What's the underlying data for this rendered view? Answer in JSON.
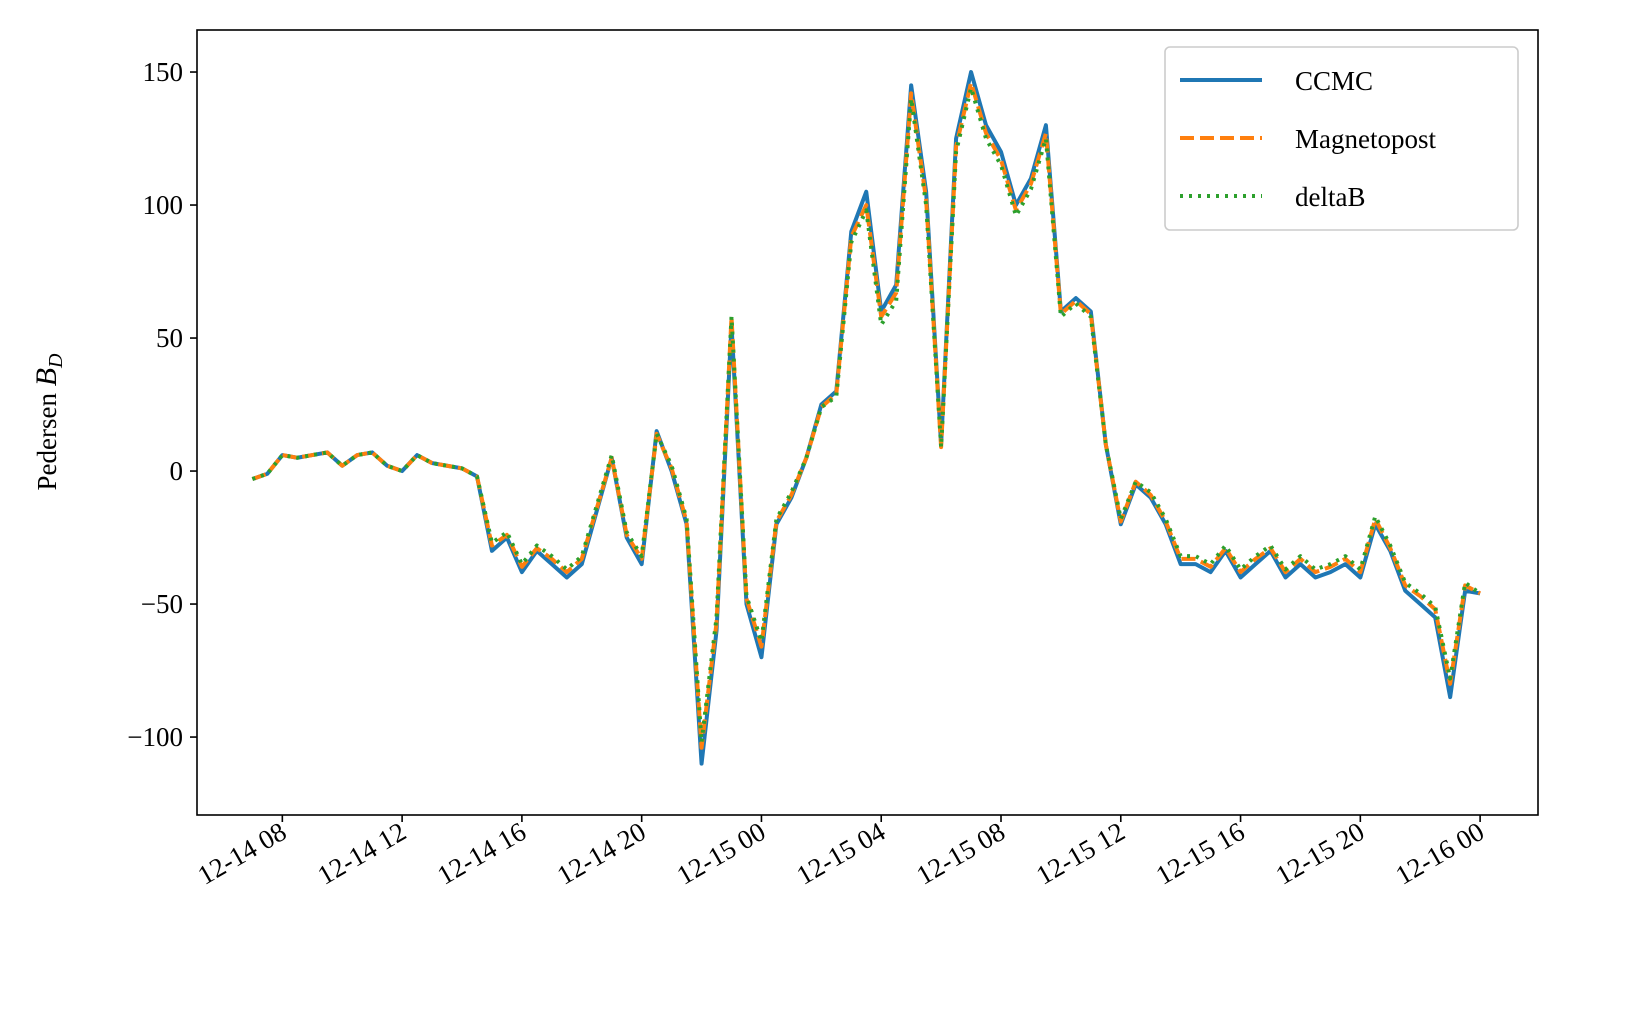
{
  "chart_data": {
    "type": "line",
    "ylabel": {
      "text": "Pedersen",
      "symbol": "B",
      "subscript": "D"
    },
    "x": [
      "12-14 07:00",
      "12-14 07:30",
      "12-14 08:00",
      "12-14 08:30",
      "12-14 09:00",
      "12-14 09:30",
      "12-14 10:00",
      "12-14 10:30",
      "12-14 11:00",
      "12-14 11:30",
      "12-14 12:00",
      "12-14 12:30",
      "12-14 13:00",
      "12-14 13:30",
      "12-14 14:00",
      "12-14 14:30",
      "12-14 15:00",
      "12-14 15:30",
      "12-14 16:00",
      "12-14 16:30",
      "12-14 17:00",
      "12-14 17:30",
      "12-14 18:00",
      "12-14 18:30",
      "12-14 19:00",
      "12-14 19:30",
      "12-14 20:00",
      "12-14 20:30",
      "12-14 21:00",
      "12-14 21:30",
      "12-14 22:00",
      "12-14 22:30",
      "12-14 23:00",
      "12-14 23:30",
      "12-15 00:00",
      "12-15 00:30",
      "12-15 01:00",
      "12-15 01:30",
      "12-15 02:00",
      "12-15 02:30",
      "12-15 03:00",
      "12-15 03:30",
      "12-15 04:00",
      "12-15 04:30",
      "12-15 05:00",
      "12-15 05:30",
      "12-15 06:00",
      "12-15 06:30",
      "12-15 07:00",
      "12-15 07:30",
      "12-15 08:00",
      "12-15 08:30",
      "12-15 09:00",
      "12-15 09:30",
      "12-15 10:00",
      "12-15 10:30",
      "12-15 11:00",
      "12-15 11:30",
      "12-15 12:00",
      "12-15 12:30",
      "12-15 13:00",
      "12-15 13:30",
      "12-15 14:00",
      "12-15 14:30",
      "12-15 15:00",
      "12-15 15:30",
      "12-15 16:00",
      "12-15 16:30",
      "12-15 17:00",
      "12-15 17:30",
      "12-15 18:00",
      "12-15 18:30",
      "12-15 19:00",
      "12-15 19:30",
      "12-15 20:00",
      "12-15 20:30",
      "12-15 21:00",
      "12-15 21:30",
      "12-15 22:00",
      "12-15 22:30",
      "12-15 23:00",
      "12-15 23:30",
      "12-16 00:00"
    ],
    "series": [
      {
        "name": "CCMC",
        "color": "#1f77b4",
        "linestyle": "solid",
        "values": [
          -3,
          -1,
          6,
          5,
          6,
          7,
          2,
          6,
          7,
          2,
          0,
          6,
          3,
          2,
          1,
          -2,
          -30,
          -25,
          -38,
          -30,
          -35,
          -40,
          -35,
          -15,
          5,
          -25,
          -35,
          15,
          0,
          -20,
          -110,
          -60,
          55,
          -50,
          -70,
          -20,
          -10,
          5,
          25,
          30,
          90,
          105,
          60,
          70,
          145,
          105,
          10,
          125,
          150,
          130,
          120,
          100,
          110,
          130,
          60,
          65,
          60,
          10,
          -20,
          -5,
          -10,
          -20,
          -35,
          -35,
          -38,
          -30,
          -40,
          -35,
          -30,
          -40,
          -35,
          -40,
          -38,
          -35,
          -40,
          -20,
          -30,
          -45,
          -50,
          -55,
          -85,
          -45,
          -46
        ]
      },
      {
        "name": "Magnetopost",
        "color": "#ff7f0e",
        "linestyle": "dashed",
        "values": [
          -3,
          -1,
          6,
          5,
          6,
          7,
          2,
          6,
          7,
          2,
          0,
          6,
          3,
          2,
          1,
          -2,
          -28,
          -24,
          -36,
          -29,
          -33,
          -38,
          -33,
          -14,
          5,
          -24,
          -33,
          14,
          1,
          -19,
          -104,
          -57,
          58,
          -48,
          -66,
          -19,
          -9,
          5,
          24,
          29,
          88,
          100,
          58,
          67,
          142,
          102,
          9,
          122,
          146,
          127,
          117,
          98,
          108,
          127,
          59,
          64,
          59,
          10,
          -19,
          -4,
          -9,
          -19,
          -33,
          -33,
          -36,
          -29,
          -38,
          -33,
          -29,
          -38,
          -33,
          -38,
          -36,
          -33,
          -38,
          -18,
          -29,
          -43,
          -47,
          -52,
          -80,
          -43,
          -46
        ]
      },
      {
        "name": "deltaB",
        "color": "#2ca02c",
        "linestyle": "dotted",
        "values": [
          -3,
          -1,
          6,
          5,
          6,
          7,
          2,
          6,
          7,
          2,
          0,
          6,
          3,
          2,
          1,
          -2,
          -27,
          -23,
          -35,
          -28,
          -32,
          -37,
          -32,
          -13,
          6,
          -23,
          -32,
          14,
          2,
          -18,
          -102,
          -55,
          58,
          -47,
          -64,
          -18,
          -8,
          5,
          24,
          28,
          86,
          98,
          55,
          64,
          140,
          100,
          9,
          120,
          144,
          125,
          115,
          96,
          106,
          125,
          58,
          63,
          58,
          10,
          -18,
          -4,
          -8,
          -18,
          -32,
          -32,
          -35,
          -28,
          -37,
          -32,
          -28,
          -37,
          -32,
          -37,
          -35,
          -32,
          -37,
          -17,
          -28,
          -42,
          -46,
          -51,
          -78,
          -42,
          -46
        ]
      }
    ],
    "xlim": [
      "12-14 05:09",
      "12-16 01:56"
    ],
    "xticks": [
      {
        "value": "12-14 08:00",
        "label": "12-14 08"
      },
      {
        "value": "12-14 12:00",
        "label": "12-14 12"
      },
      {
        "value": "12-14 16:00",
        "label": "12-14 16"
      },
      {
        "value": "12-14 20:00",
        "label": "12-14 20"
      },
      {
        "value": "12-15 00:00",
        "label": "12-15 00"
      },
      {
        "value": "12-15 04:00",
        "label": "12-15 04"
      },
      {
        "value": "12-15 08:00",
        "label": "12-15 08"
      },
      {
        "value": "12-15 12:00",
        "label": "12-15 12"
      },
      {
        "value": "12-15 16:00",
        "label": "12-15 16"
      },
      {
        "value": "12-15 20:00",
        "label": "12-15 20"
      },
      {
        "value": "12-16 00:00",
        "label": "12-16 00"
      }
    ],
    "ylim": [
      -129.3,
      165.8
    ],
    "yticks": [
      {
        "value": -100,
        "label": "−100"
      },
      {
        "value": -50,
        "label": "−50"
      },
      0,
      50,
      100,
      150
    ],
    "grid": false,
    "legend": "upper right"
  }
}
